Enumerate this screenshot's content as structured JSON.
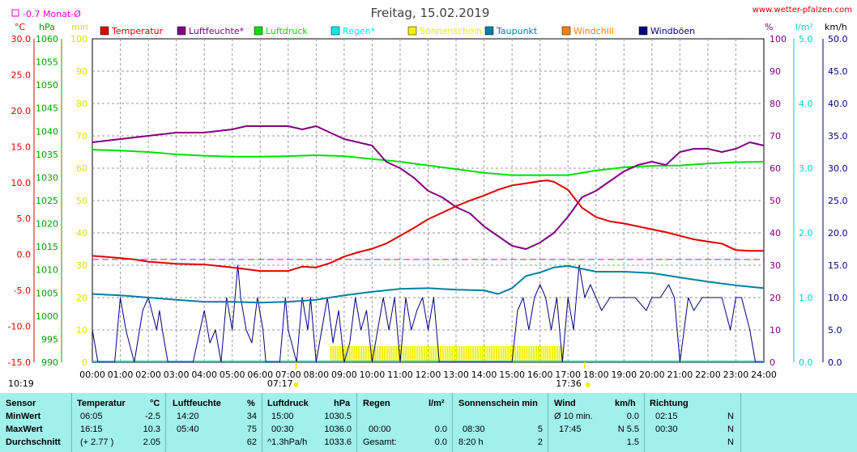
{
  "header": {
    "title": "Freitag, 15.02.2019",
    "site": "www.wetter-pfalzen.com",
    "monat_avg_label": "-0.7 Monat-Ø",
    "unit_c": "°C",
    "unit_hpa": "hPa",
    "unit_min": "min",
    "unit_pct": "%",
    "unit_lm2": "l/m²",
    "unit_kmh": "km/h"
  },
  "legend": [
    {
      "label": "Temperatur",
      "color": "#e00000"
    },
    {
      "label": "Luftfeuchte*",
      "color": "#800080"
    },
    {
      "label": "Luftdruck",
      "color": "#00e000"
    },
    {
      "label": "Regen*",
      "color": "#00e8e8"
    },
    {
      "label": "Sonnenschein",
      "color": "#f0f000"
    },
    {
      "label": "Taupunkt",
      "color": "#0080a0"
    },
    {
      "label": "Windchill",
      "color": "#ff8000"
    },
    {
      "label": "Windböen",
      "color": "#000080"
    }
  ],
  "time_markers": {
    "sunrise": "07:17",
    "sunset": "17:36",
    "moon": "10:19"
  },
  "chart_data": {
    "type": "line",
    "x_unit": "time of day (h)",
    "x_ticks": [
      "00:00",
      "01:00",
      "02:00",
      "03:00",
      "04:00",
      "05:00",
      "06:00",
      "07:00",
      "08:00",
      "09:00",
      "10:00",
      "11:00",
      "12:00",
      "13:00",
      "14:00",
      "15:00",
      "16:00",
      "17:00",
      "18:00",
      "19:00",
      "20:00",
      "21:00",
      "22:00",
      "23:00",
      "24:00"
    ],
    "axes": {
      "temperature_c": {
        "range": [
          -15,
          30
        ],
        "ticks": [
          "30.0",
          "25.0",
          "20.0",
          "15.0",
          "10.0",
          "5.0",
          "0.0",
          "-5.0",
          "-10.0",
          "-15.0"
        ],
        "color": "#e00000"
      },
      "pressure_hpa": {
        "range": [
          990,
          1060
        ],
        "ticks": [
          "1060",
          "1055",
          "1050",
          "1045",
          "1040",
          "1035",
          "1030",
          "1025",
          "1020",
          "1015",
          "1010",
          "1005",
          "1000",
          "995",
          "990"
        ],
        "color": "#00a000"
      },
      "sunshine_min": {
        "range": [
          0,
          100
        ],
        "ticks": [
          "100",
          "90",
          "80",
          "70",
          "60",
          "50",
          "40",
          "30",
          "20",
          "10",
          "0"
        ],
        "color": "#e0e000"
      },
      "humidity_pct": {
        "range": [
          0,
          100
        ],
        "ticks": [
          "100",
          "90",
          "80",
          "70",
          "60",
          "50",
          "40",
          "30",
          "20",
          "10",
          "0"
        ],
        "color": "#800080"
      },
      "rain_lm2": {
        "range": [
          0,
          5
        ],
        "ticks": [
          "5.0",
          "4.0",
          "3.0",
          "2.0",
          "1.0",
          "0.0"
        ],
        "color": "#00d0d0"
      },
      "wind_kmh": {
        "range": [
          0,
          50
        ],
        "ticks": [
          "50.0",
          "45.0",
          "40.0",
          "35.0",
          "30.0",
          "25.0",
          "20.0",
          "15.0",
          "10.0",
          "5.0",
          "0.0"
        ],
        "color": "#000080"
      }
    },
    "monthly_avg_temp": -0.7,
    "series": [
      {
        "name": "Temperatur",
        "unit": "°C",
        "color": "#e00000",
        "x": [
          0,
          1,
          1.5,
          2,
          3,
          4,
          5,
          6,
          7,
          7.5,
          8,
          8.5,
          9,
          9.5,
          10,
          10.5,
          11,
          11.5,
          12,
          12.5,
          13,
          13.5,
          14,
          14.5,
          15,
          15.5,
          16,
          16.25,
          16.5,
          17,
          17.5,
          18,
          18.5,
          19,
          19.5,
          20,
          20.5,
          21,
          21.5,
          22,
          22.5,
          23,
          23.5,
          24
        ],
        "y": [
          -0.2,
          -0.5,
          -0.7,
          -1.0,
          -1.3,
          -1.4,
          -1.8,
          -2.3,
          -2.3,
          -1.7,
          -1.8,
          -1.2,
          -0.3,
          0.3,
          0.8,
          1.5,
          2.6,
          3.7,
          4.9,
          5.8,
          6.7,
          7.5,
          8.2,
          9.0,
          9.6,
          9.9,
          10.2,
          10.3,
          10.1,
          9.0,
          6.5,
          5.2,
          4.6,
          4.3,
          3.9,
          3.5,
          3.1,
          2.6,
          2.1,
          1.8,
          1.5,
          0.6,
          0.5,
          0.5
        ]
      },
      {
        "name": "Luftfeuchte*",
        "unit": "%",
        "color": "#800080",
        "x": [
          0,
          1,
          2,
          3,
          4,
          5,
          5.5,
          6,
          7,
          7.5,
          8,
          8.5,
          9,
          10,
          10.5,
          11,
          11.5,
          12,
          12.5,
          13,
          13.5,
          14,
          14.5,
          15,
          15.5,
          16,
          16.5,
          17,
          17.5,
          18,
          18.5,
          19,
          19.5,
          20,
          20.5,
          21,
          21.5,
          22,
          22.5,
          23,
          23.5,
          24
        ],
        "y": [
          68,
          69,
          70,
          71,
          71,
          72,
          73,
          73,
          73,
          72,
          73,
          71,
          69,
          67,
          62,
          60,
          57,
          53,
          51,
          48,
          46,
          42,
          39,
          36,
          35,
          37,
          40,
          45,
          51,
          53,
          56,
          59,
          61,
          62,
          61,
          65,
          66,
          66,
          65,
          66,
          68,
          67
        ]
      },
      {
        "name": "Luftdruck",
        "unit": "hPa",
        "color": "#00e000",
        "x": [
          0,
          1,
          2,
          3,
          4,
          5,
          6,
          7,
          8,
          9,
          10,
          11,
          12,
          13,
          14,
          15,
          16,
          17,
          18,
          19,
          20,
          21,
          22,
          23,
          24
        ],
        "y": [
          1036.0,
          1035.8,
          1035.5,
          1035.0,
          1034.7,
          1034.5,
          1034.5,
          1034.6,
          1034.8,
          1034.6,
          1034.0,
          1033.4,
          1032.6,
          1031.8,
          1031.0,
          1030.5,
          1030.5,
          1030.5,
          1031.5,
          1032.2,
          1032.5,
          1032.6,
          1033.0,
          1033.3,
          1033.4
        ]
      },
      {
        "name": "Taupunkt",
        "unit": "°C",
        "color": "#0080a0",
        "x": [
          0,
          1,
          2,
          3,
          4,
          5,
          6,
          7,
          8,
          9,
          10,
          11,
          12,
          13,
          14,
          14.5,
          15,
          15.5,
          16,
          16.5,
          17,
          17.5,
          18,
          19,
          20,
          21,
          22,
          23,
          24
        ],
        "y": [
          -5.5,
          -5.7,
          -6.0,
          -6.3,
          -6.6,
          -6.6,
          -6.7,
          -6.6,
          -6.3,
          -5.7,
          -5.2,
          -4.8,
          -4.7,
          -4.9,
          -5.0,
          -5.5,
          -4.7,
          -3.0,
          -2.5,
          -1.8,
          -1.6,
          -2.0,
          -2.4,
          -2.4,
          -2.6,
          -3.2,
          -3.8,
          -4.3,
          -4.7
        ]
      },
      {
        "name": "Windböen",
        "unit": "km/h",
        "color": "#000080",
        "x": [
          0,
          0.2,
          0.4,
          0.8,
          1.0,
          1.2,
          1.5,
          1.8,
          2.0,
          2.3,
          2.4,
          2.5,
          2.7,
          3.0,
          3.3,
          3.6,
          4.0,
          4.2,
          4.4,
          4.6,
          4.8,
          5.0,
          5.2,
          5.3,
          5.5,
          5.7,
          5.9,
          6.1,
          6.2,
          6.3,
          6.5,
          6.7,
          6.9,
          7.0,
          7.3,
          7.5,
          7.7,
          7.8,
          8.0,
          8.2,
          8.4,
          8.6,
          8.8,
          9.0,
          9.2,
          9.4,
          9.6,
          9.8,
          10.0,
          10.2,
          10.4,
          10.6,
          10.8,
          11.0,
          11.2,
          11.4,
          11.6,
          11.8,
          12.0,
          12.2,
          12.4,
          12.6,
          12.8,
          13.0,
          13.5,
          14.0,
          14.5,
          15.0,
          15.2,
          15.4,
          15.6,
          15.8,
          16.0,
          16.2,
          16.4,
          16.6,
          16.8,
          17.0,
          17.2,
          17.4,
          17.6,
          17.8,
          18.0,
          18.2,
          18.5,
          18.8,
          19.0,
          19.4,
          19.8,
          20.0,
          20.3,
          20.6,
          20.8,
          21.0,
          21.3,
          21.5,
          21.8,
          22.0,
          22.3,
          22.5,
          22.8,
          23.0,
          23.2,
          23.5,
          23.7,
          24.0
        ],
        "y": [
          5,
          0,
          0,
          0,
          10,
          5,
          0,
          8,
          10,
          5,
          8,
          5,
          0,
          0,
          0,
          0,
          8,
          3,
          5,
          0,
          10,
          5,
          15,
          10,
          5,
          3,
          10,
          5,
          0,
          0,
          0,
          0,
          10,
          5,
          0,
          10,
          5,
          10,
          0,
          5,
          10,
          3,
          8,
          0,
          3,
          10,
          5,
          8,
          0,
          5,
          10,
          5,
          10,
          0,
          10,
          5,
          8,
          10,
          5,
          10,
          0,
          0,
          0,
          0,
          0,
          0,
          0,
          0,
          8,
          10,
          5,
          10,
          12,
          10,
          5,
          10,
          0,
          10,
          5,
          15,
          10,
          12,
          10,
          8,
          10,
          10,
          10,
          10,
          8,
          10,
          10,
          12,
          10,
          0,
          10,
          8,
          10,
          10,
          10,
          10,
          5,
          10,
          10,
          5,
          0,
          0
        ]
      }
    ],
    "sunshine_bars": {
      "name": "Sonnenschein",
      "unit": "min",
      "color": "#f0f000",
      "x_start": 8.5,
      "x_end": 16.8,
      "value": 5
    }
  },
  "stats": {
    "headers": {
      "sensor": "Sensor",
      "temp": "Temperatur",
      "temp_unit": "°C",
      "hum": "Luftfeuchte",
      "hum_unit": "%",
      "press": "Luftdruck",
      "press_unit": "hPa",
      "rain": "Regen",
      "rain_unit": "l/m²",
      "sun": "Sonnenschein min",
      "wind": "Wind",
      "wind_unit": "km/h",
      "dir": "Richtung"
    },
    "rows": [
      {
        "label": "MinWert",
        "temp_time": "06:05",
        "temp_val": "-2.5",
        "hum_time": "14:20",
        "hum_val": "34",
        "press_time": "15:00",
        "press_val": "1030.5",
        "rain_time": "",
        "rain_val": "",
        "sun_time": "",
        "sun_val": "",
        "wind_time": "Ø 10 min.",
        "wind_val": "0.0",
        "dir_time": "02:15",
        "dir_val": "N"
      },
      {
        "label": "MaxWert",
        "temp_time": "16:15",
        "temp_val": "10.3",
        "hum_time": "05:40",
        "hum_val": "75",
        "press_time": "00:30",
        "press_val": "1036.0",
        "rain_time": "00:00",
        "rain_val": "0.0",
        "sun_time": "08:30",
        "sun_val": "5",
        "wind_time": "17:45",
        "wind_val": "N 5.5",
        "dir_time": "00:30",
        "dir_val": "N"
      },
      {
        "label": "Durchschnitt",
        "temp_time": "(+ 2.77 )",
        "temp_val": "2.05",
        "hum_time": "",
        "hum_val": "62",
        "press_time": "^1.3hPa/h",
        "press_val": "1033.6",
        "rain_time": "Gesamt:",
        "rain_val": "0.0",
        "sun_time": "8:20 h",
        "sun_val": "2",
        "wind_time": "",
        "wind_val": "1.5",
        "dir_time": "",
        "dir_val": "N"
      }
    ]
  }
}
